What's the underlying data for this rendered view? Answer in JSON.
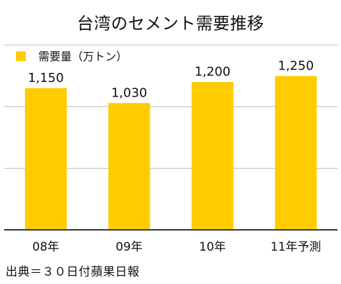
{
  "colors": {
    "bar": "#FFCC00",
    "grid": "#bcbcbc",
    "axis": "#333333",
    "text": "#111111"
  },
  "footer": {
    "source": "出典＝３０日付蘋果日報"
  },
  "chart_data": {
    "type": "bar",
    "title": "台湾のセメント需要推移",
    "categories": [
      "08年",
      "09年",
      "10年",
      "11年予測"
    ],
    "series": [
      {
        "name": "需要量（万トン）",
        "values": [
          1150,
          1030,
          1200,
          1250
        ],
        "labels": [
          "1,150",
          "1,030",
          "1,200",
          "1,250"
        ]
      }
    ],
    "ylim": [
      0,
      1500
    ],
    "grid": true,
    "legend_position": "top-left"
  }
}
